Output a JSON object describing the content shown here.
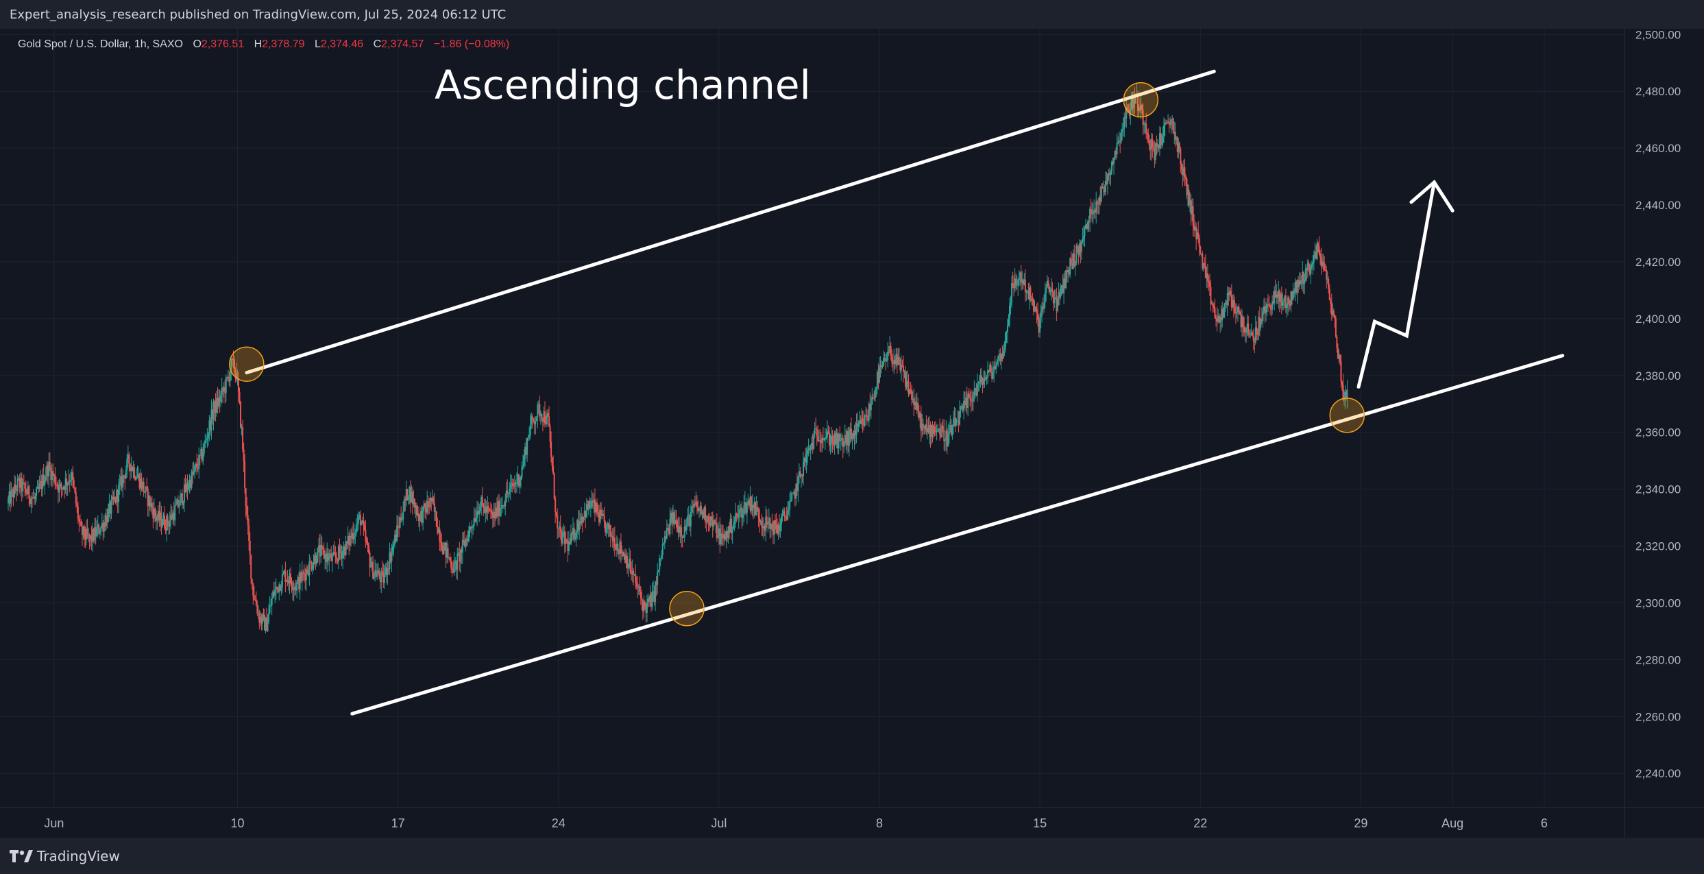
{
  "header": {
    "publish_line": "Expert_analysis_research published on TradingView.com, Jul 25, 2024 06:12 UTC"
  },
  "footer": {
    "logo_text": "TradingView",
    "logo_icon": "tradingview-logo-icon"
  },
  "colors": {
    "background": "#131722",
    "bar_background": "#1e222d",
    "grid": "#1f2430",
    "text": "#d1d4dc",
    "axis_text": "#b2b5be",
    "up_candle": "#26a69a",
    "down_candle": "#ef5350",
    "ohlc_value": "#f23645",
    "drawing": "#ffffff",
    "marker_fill": "#f7a21b",
    "marker_stroke": "#f7a21b"
  },
  "chart_data": {
    "type": "candlestick",
    "symbol_legend": {
      "name": "Gold Spot / U.S. Dollar, 1h, SAXO",
      "open_label": "O",
      "open": "2,376.51",
      "high_label": "H",
      "high": "2,378.79",
      "low_label": "L",
      "low": "2,374.46",
      "close_label": "C",
      "close": "2,374.57",
      "change": "−1.86 (−0.08%)"
    },
    "annotation_title": "Ascending channel",
    "x_axis": {
      "range_days": [
        0,
        70.5
      ],
      "tick_labels": [
        {
          "label": "Jun",
          "day": 2
        },
        {
          "label": "10",
          "day": 10
        },
        {
          "label": "17",
          "day": 17
        },
        {
          "label": "24",
          "day": 24
        },
        {
          "label": "Jul",
          "day": 31
        },
        {
          "label": "8",
          "day": 38
        },
        {
          "label": "15",
          "day": 45
        },
        {
          "label": "22",
          "day": 52
        },
        {
          "label": "29",
          "day": 59
        },
        {
          "label": "Aug",
          "day": 63
        },
        {
          "label": "6",
          "day": 67
        }
      ]
    },
    "y_axis": {
      "range": [
        2228,
        2502
      ],
      "tick_labels": [
        "2,240.00",
        "2,260.00",
        "2,280.00",
        "2,300.00",
        "2,320.00",
        "2,340.00",
        "2,360.00",
        "2,380.00",
        "2,400.00",
        "2,420.00",
        "2,440.00",
        "2,460.00",
        "2,480.00",
        "2,500.00"
      ],
      "tick_values": [
        2240,
        2260,
        2280,
        2300,
        2320,
        2340,
        2360,
        2380,
        2400,
        2420,
        2440,
        2460,
        2480,
        2500
      ]
    },
    "price_path": [
      [
        0.0,
        2335
      ],
      [
        0.5,
        2342
      ],
      [
        1.2,
        2336
      ],
      [
        1.8,
        2348
      ],
      [
        2.3,
        2340
      ],
      [
        2.8,
        2345
      ],
      [
        3.2,
        2325
      ],
      [
        3.6,
        2322
      ],
      [
        4.2,
        2328
      ],
      [
        4.8,
        2338
      ],
      [
        5.3,
        2350
      ],
      [
        5.8,
        2343
      ],
      [
        6.5,
        2330
      ],
      [
        7.0,
        2328
      ],
      [
        7.5,
        2335
      ],
      [
        8.1,
        2345
      ],
      [
        8.5,
        2352
      ],
      [
        9.0,
        2368
      ],
      [
        9.3,
        2372
      ],
      [
        9.6,
        2378
      ],
      [
        9.8,
        2384
      ],
      [
        10.0,
        2381
      ],
      [
        10.25,
        2358
      ],
      [
        10.45,
        2330
      ],
      [
        10.7,
        2305
      ],
      [
        11.0,
        2295
      ],
      [
        11.3,
        2292
      ],
      [
        11.6,
        2303
      ],
      [
        12.1,
        2310
      ],
      [
        12.6,
        2306
      ],
      [
        13.1,
        2312
      ],
      [
        13.6,
        2318
      ],
      [
        14.2,
        2315
      ],
      [
        14.8,
        2320
      ],
      [
        15.4,
        2330
      ],
      [
        15.9,
        2312
      ],
      [
        16.4,
        2308
      ],
      [
        16.9,
        2322
      ],
      [
        17.5,
        2340
      ],
      [
        18.0,
        2330
      ],
      [
        18.5,
        2336
      ],
      [
        19.0,
        2320
      ],
      [
        19.5,
        2312
      ],
      [
        20.0,
        2322
      ],
      [
        20.6,
        2335
      ],
      [
        21.2,
        2330
      ],
      [
        21.8,
        2338
      ],
      [
        22.4,
        2345
      ],
      [
        22.8,
        2362
      ],
      [
        23.2,
        2368
      ],
      [
        23.6,
        2364
      ],
      [
        23.8,
        2345
      ],
      [
        24.0,
        2325
      ],
      [
        24.5,
        2320
      ],
      [
        25.0,
        2330
      ],
      [
        25.5,
        2335
      ],
      [
        26.0,
        2328
      ],
      [
        26.5,
        2322
      ],
      [
        27.0,
        2316
      ],
      [
        27.5,
        2305
      ],
      [
        27.8,
        2298
      ],
      [
        28.2,
        2302
      ],
      [
        28.6,
        2320
      ],
      [
        29.0,
        2330
      ],
      [
        29.5,
        2325
      ],
      [
        30.0,
        2334
      ],
      [
        30.6,
        2330
      ],
      [
        31.2,
        2322
      ],
      [
        31.8,
        2330
      ],
      [
        32.4,
        2336
      ],
      [
        33.0,
        2328
      ],
      [
        33.6,
        2326
      ],
      [
        34.2,
        2335
      ],
      [
        34.8,
        2350
      ],
      [
        35.3,
        2360
      ],
      [
        35.8,
        2358
      ],
      [
        36.4,
        2356
      ],
      [
        37.0,
        2360
      ],
      [
        37.5,
        2365
      ],
      [
        38.0,
        2380
      ],
      [
        38.5,
        2388
      ],
      [
        39.0,
        2382
      ],
      [
        39.5,
        2372
      ],
      [
        40.0,
        2360
      ],
      [
        40.5,
        2362
      ],
      [
        41.0,
        2358
      ],
      [
        41.5,
        2365
      ],
      [
        42.0,
        2372
      ],
      [
        42.5,
        2378
      ],
      [
        43.0,
        2382
      ],
      [
        43.5,
        2390
      ],
      [
        43.8,
        2410
      ],
      [
        44.2,
        2415
      ],
      [
        44.6,
        2408
      ],
      [
        45.0,
        2398
      ],
      [
        45.4,
        2412
      ],
      [
        45.8,
        2405
      ],
      [
        46.3,
        2418
      ],
      [
        46.8,
        2425
      ],
      [
        47.3,
        2438
      ],
      [
        47.8,
        2445
      ],
      [
        48.3,
        2458
      ],
      [
        48.8,
        2472
      ],
      [
        49.2,
        2478
      ],
      [
        49.6,
        2470
      ],
      [
        50.0,
        2458
      ],
      [
        50.4,
        2465
      ],
      [
        50.8,
        2470
      ],
      [
        51.2,
        2455
      ],
      [
        51.6,
        2440
      ],
      [
        52.0,
        2425
      ],
      [
        52.4,
        2410
      ],
      [
        52.8,
        2398
      ],
      [
        53.3,
        2408
      ],
      [
        53.8,
        2400
      ],
      [
        54.3,
        2392
      ],
      [
        54.8,
        2402
      ],
      [
        55.3,
        2408
      ],
      [
        55.8,
        2405
      ],
      [
        56.3,
        2412
      ],
      [
        56.8,
        2418
      ],
      [
        57.2,
        2425
      ],
      [
        57.6,
        2412
      ],
      [
        57.9,
        2398
      ],
      [
        58.1,
        2385
      ],
      [
        58.3,
        2372
      ],
      [
        58.45,
        2375
      ]
    ],
    "drawings": {
      "upper_channel_line": {
        "start": [
          10.4,
          2381
        ],
        "end": [
          52.6,
          2487
        ]
      },
      "lower_channel_line": {
        "start": [
          15.0,
          2261
        ],
        "end": [
          67.8,
          2387
        ]
      },
      "touch_markers": [
        {
          "day": 10.4,
          "price": 2384
        },
        {
          "day": 49.4,
          "price": 2477
        },
        {
          "day": 29.6,
          "price": 2298
        },
        {
          "day": 58.4,
          "price": 2366
        }
      ],
      "projection_path": [
        [
          58.9,
          2376
        ],
        [
          59.6,
          2399
        ],
        [
          61.0,
          2394
        ],
        [
          62.2,
          2448
        ]
      ],
      "arrow_head_left": [
        61.2,
        2441
      ],
      "arrow_head_right": [
        63.0,
        2438
      ]
    }
  }
}
